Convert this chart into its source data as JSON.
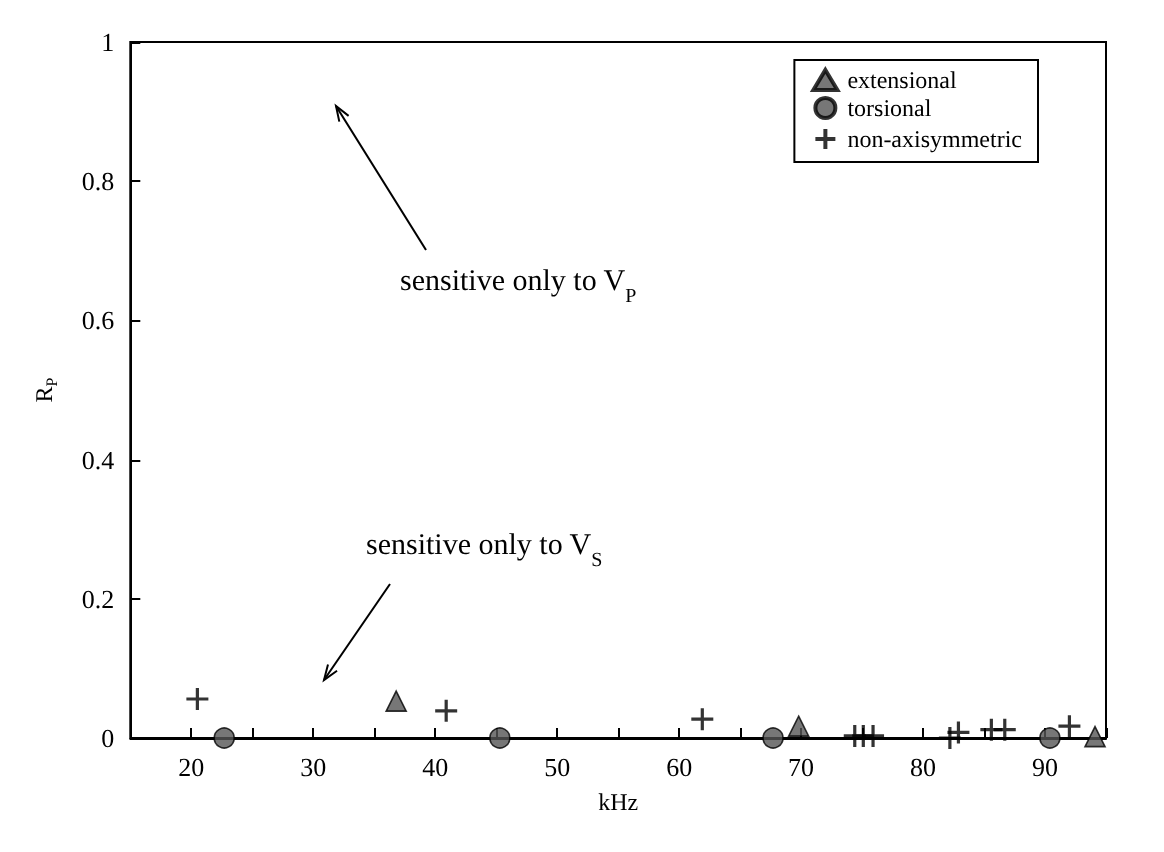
{
  "chart_data": {
    "type": "scatter",
    "xlabel": "kHz",
    "ylabel": "R$_{P}$",
    "xlim": [
      15,
      95
    ],
    "xticks": [
      {
        "value": 15,
        "label": null
      },
      20,
      {
        "value": 25,
        "label": null
      },
      30,
      {
        "value": 35,
        "label": null
      },
      40,
      {
        "value": 45,
        "label": null
      },
      50,
      {
        "value": 55,
        "label": null
      },
      60,
      {
        "value": 65,
        "label": null
      },
      70,
      {
        "value": 75,
        "label": null
      },
      80,
      {
        "value": 85,
        "label": null
      },
      90,
      {
        "value": 95,
        "label": null
      }
    ],
    "ylim": [
      0,
      1
    ],
    "yticks": [
      0,
      0.2,
      0.4,
      0.6,
      0.8,
      1
    ],
    "grid": false,
    "legend": "top right",
    "series": [
      {
        "name": "extensional",
        "color": "#555555",
        "marker": "triangle",
        "x": [
          36.8,
          69.8,
          94.1
        ],
        "values": [
          0.053,
          0.017,
          0.002
        ]
      },
      {
        "name": "torsional",
        "color": "#555555",
        "marker": "circle",
        "x": [
          22.7,
          45.3,
          67.7,
          90.4
        ],
        "values": [
          0,
          0,
          0,
          0
        ]
      },
      {
        "name": "non-axisymmetric",
        "color": "#000000",
        "marker": "cross",
        "x": [
          20.5,
          40.9,
          61.9,
          74.4,
          75.1,
          75.9,
          82.2,
          82.9,
          85.6,
          86.7,
          92.0
        ],
        "values": [
          0.056,
          0.039,
          0.027,
          0.003,
          0.003,
          0.003,
          0,
          0.008,
          0.012,
          0.012,
          0.017
        ]
      }
    ],
    "annotations": [
      "sensitive only to V$_{P}$",
      "sensitive only to V$_{S}$"
    ]
  }
}
